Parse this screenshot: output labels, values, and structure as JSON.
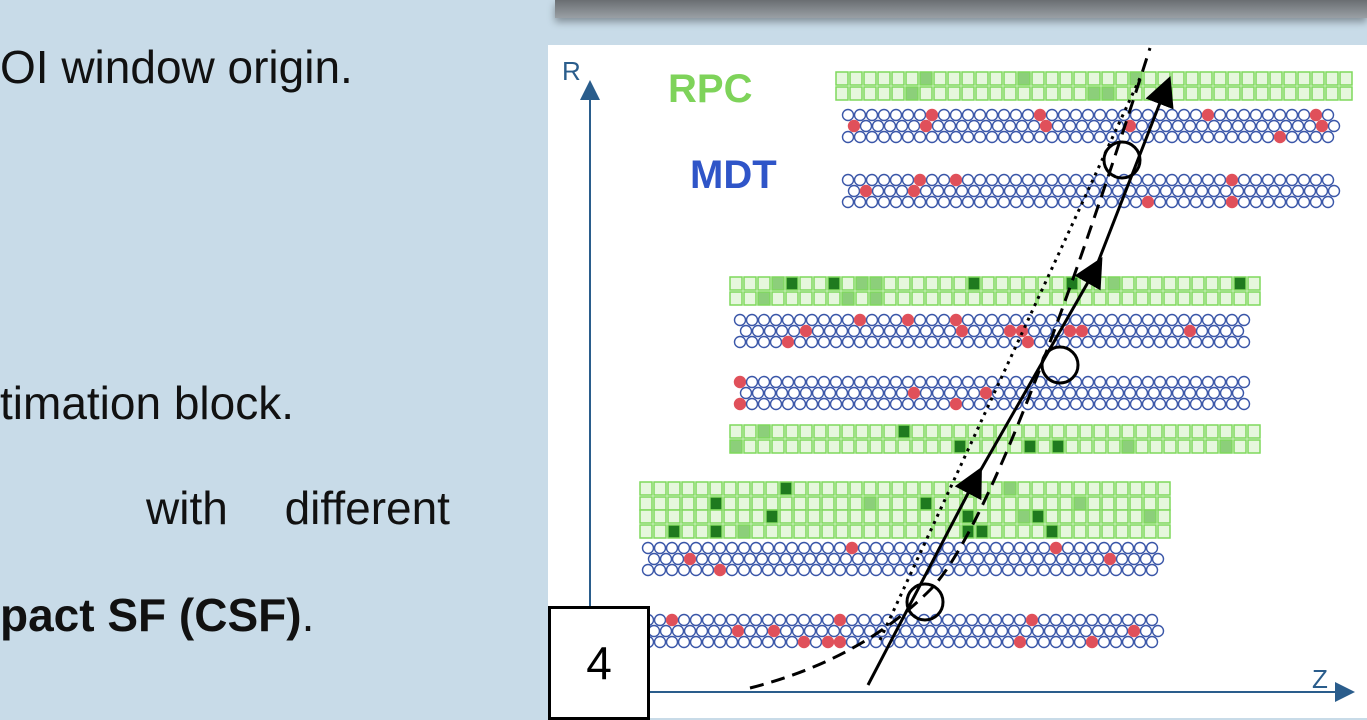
{
  "slide_text": {
    "lines": [
      "OI window origin.",
      "timation block.",
      "with different"
    ],
    "bold": "pact SF (CSF)",
    "end": "."
  },
  "figure": {
    "axis_r": "R",
    "axis_z": "Z",
    "rpc_label": "RPC",
    "mdt_label": "MDT"
  },
  "slide_number": "4"
}
